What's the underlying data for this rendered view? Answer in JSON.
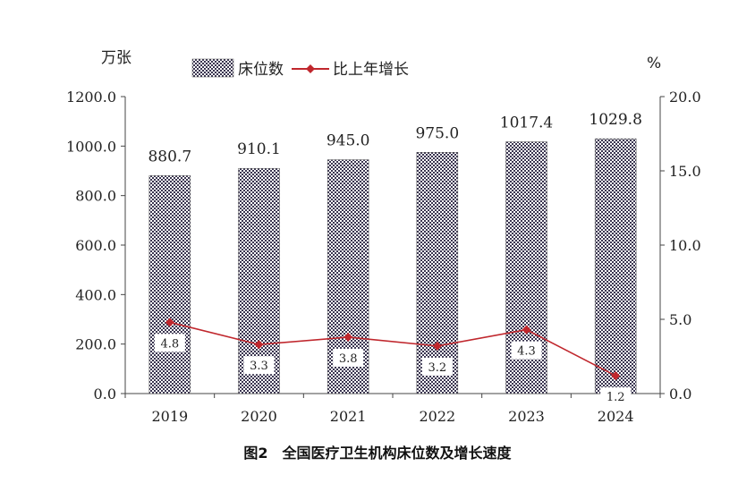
{
  "chart_data": {
    "type": "bar",
    "title": "图2　全国医疗卫生机构床位数及增长速度",
    "categories": [
      "2019",
      "2020",
      "2021",
      "2022",
      "2023",
      "2024"
    ],
    "series": [
      {
        "name": "床位数",
        "type": "bar",
        "axis": "left",
        "values": [
          880.7,
          910.1,
          945.0,
          975.0,
          1017.4,
          1029.8
        ],
        "labels": [
          "880.7",
          "910.1",
          "945.0",
          "975.0",
          "1017.4",
          "1029.8"
        ]
      },
      {
        "name": "比上年增长",
        "type": "line",
        "axis": "right",
        "values": [
          4.8,
          3.3,
          3.8,
          3.2,
          4.3,
          1.2
        ],
        "labels": [
          "4.8",
          "3.3",
          "3.8",
          "3.2",
          "4.3",
          "1.2"
        ]
      }
    ],
    "ylabel": "万张",
    "y2label": "%",
    "ylim": [
      0,
      1200
    ],
    "y2lim": [
      0,
      20
    ],
    "yticks": [
      "0.0",
      "200.0",
      "400.0",
      "600.0",
      "800.0",
      "1000.0",
      "1200.0"
    ],
    "y2ticks": [
      "0.0",
      "5.0",
      "10.0",
      "15.0",
      "20.0"
    ],
    "legend_position": "top-center",
    "grid": false,
    "colors": {
      "bar_pattern": "#3a3550",
      "line": "#c0272d",
      "axis": "#444444"
    }
  }
}
